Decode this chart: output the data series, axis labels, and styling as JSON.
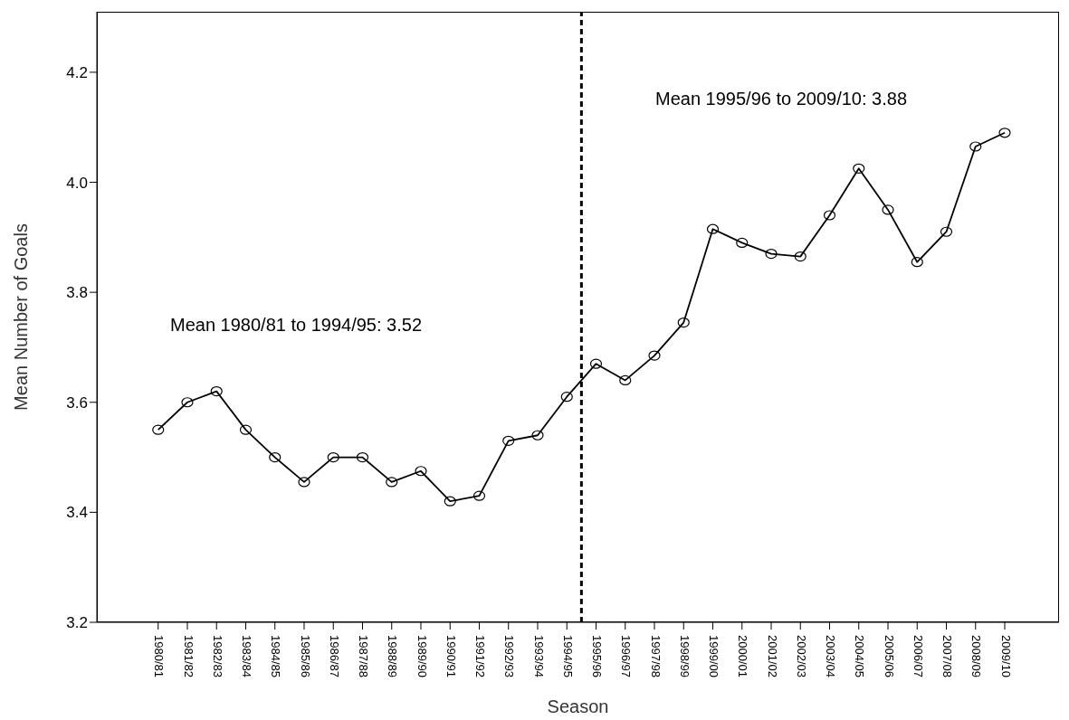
{
  "chart_data": {
    "type": "line",
    "xlabel": "Season",
    "ylabel": "Mean Number of Goals",
    "categories": [
      "1980/81",
      "1981/82",
      "1982/83",
      "1983/84",
      "1984/85",
      "1985/86",
      "1986/87",
      "1987/88",
      "1988/89",
      "1989/90",
      "1990/91",
      "1991/92",
      "1992/93",
      "1993/94",
      "1994/95",
      "1995/96",
      "1996/97",
      "1997/98",
      "1998/99",
      "1999/00",
      "2000/01",
      "2001/02",
      "2002/03",
      "2003/04",
      "2004/05",
      "2005/06",
      "2006/07",
      "2007/08",
      "2008/09",
      "2009/10"
    ],
    "series": [
      {
        "color": "#000000",
        "values": [
          3.55,
          3.6,
          3.62,
          3.55,
          3.5,
          3.455,
          3.5,
          3.5,
          3.455,
          3.475,
          3.42,
          3.43,
          3.53,
          3.54,
          3.61,
          3.67,
          3.64,
          3.685,
          3.745,
          3.915,
          3.89,
          3.87,
          3.865,
          3.94,
          4.025,
          3.95,
          3.855,
          3.91,
          4.065,
          4.09
        ]
      }
    ],
    "ylim": [
      3.2,
      4.31
    ],
    "yticks": [
      {
        "value": 3.2,
        "label": "3.2"
      },
      {
        "value": 3.4,
        "label": "3.4"
      },
      {
        "value": 3.6,
        "label": "3.6"
      },
      {
        "value": 3.8,
        "label": "3.8"
      },
      {
        "value": 4.0,
        "label": "4.0"
      },
      {
        "value": 4.2,
        "label": "4.2"
      }
    ],
    "annotations": [
      "Mean 1980/81 to 1994/95: 3.52",
      "Mean 1995/96 to 2009/10: 3.88"
    ],
    "marker": "circle",
    "line_style": "solid",
    "grid": false,
    "legend": false
  }
}
